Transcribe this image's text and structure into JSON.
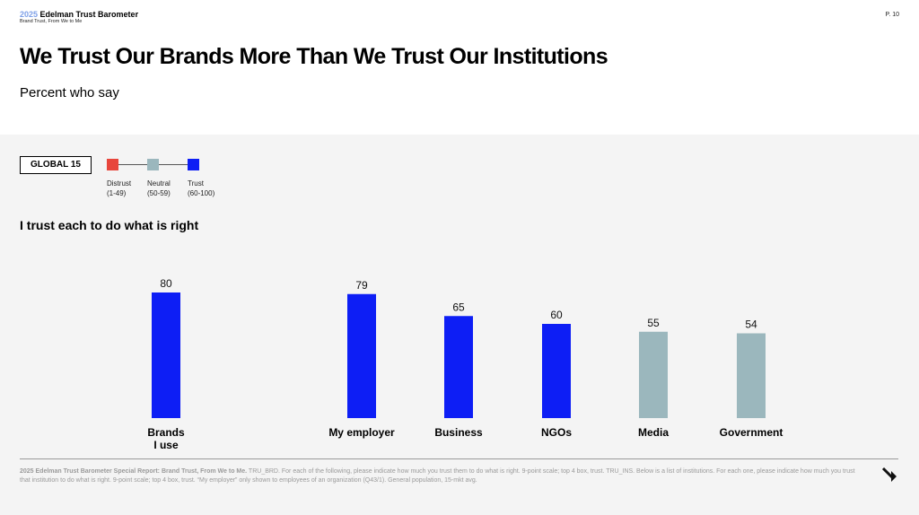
{
  "header": {
    "brand_year": "2025",
    "brand_name": " Edelman Trust Barometer",
    "brand_subtitle": "Brand Trust, From We to Me",
    "page_number": "P. 10",
    "title": "We Trust Our Brands More Than We Trust Our Institutions",
    "subtitle": "Percent who say"
  },
  "global_label": "GLOBAL 15",
  "legend": [
    {
      "label": "Distrust",
      "range": "(1-49)",
      "color": "#e8463c"
    },
    {
      "label": "Neutral",
      "range": "(50-59)",
      "color": "#9bb7bd"
    },
    {
      "label": "Trust",
      "range": "(60-100)",
      "color": "#0d1ef5"
    }
  ],
  "section_title": "I trust each to do what is right",
  "chart_data": {
    "type": "bar",
    "categories": [
      "Brands\nI use",
      "My employer",
      "Business",
      "NGOs",
      "Media",
      "Government"
    ],
    "values": [
      80,
      79,
      65,
      60,
      55,
      54
    ],
    "value_labels": [
      "80",
      "79",
      "65",
      "60",
      "55",
      "54"
    ],
    "bar_colors": [
      "#0d1ef5",
      "#0d1ef5",
      "#0d1ef5",
      "#0d1ef5",
      "#9bb7bd",
      "#9bb7bd"
    ],
    "title": "",
    "xlabel": "",
    "ylabel": "",
    "ylim": [
      0,
      100
    ],
    "grid": false,
    "legend_position": "top-left"
  },
  "footer": {
    "bold": "2025 Edelman Trust Barometer Special Report: Brand Trust, From We to Me.",
    "text": " TRU_BRD. For each of the following, please indicate how much you trust them to do what is right. 9-point scale; top 4 box, trust. TRU_INS. Below is a list of institutions. For each one, please indicate how much you trust that institution to do what is right. 9-point scale; top 4 box, trust. “My employer” only shown to employees of an organization (Q43/1). General population, 15-mkt avg."
  },
  "nav": {
    "next_icon": "arrow-down-right-icon"
  }
}
